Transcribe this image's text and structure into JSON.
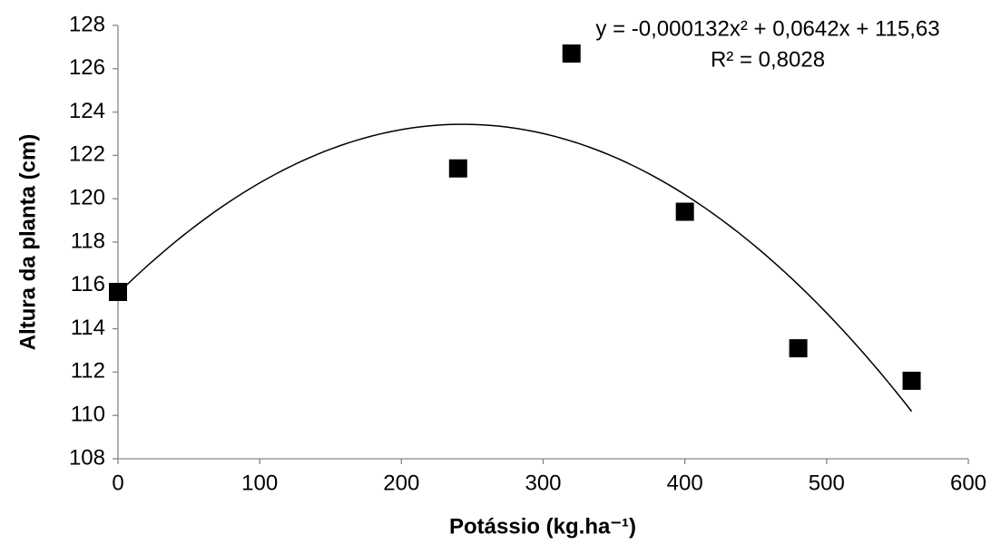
{
  "chart_data": {
    "type": "scatter",
    "x_label": "Potássio (kg.ha⁻¹)",
    "y_label": "Altura da planta (cm)",
    "series": [
      {
        "x": [
          0,
          240,
          320,
          400,
          480,
          560
        ],
        "values": [
          115.7,
          121.4,
          126.7,
          119.4,
          113.1,
          111.6
        ],
        "color": "#000000"
      }
    ],
    "trendline": {
      "equation": "y = -0,000132x² + 0,0642x + 115,63",
      "r_squared": "R² = 0,8028",
      "coefficients": [
        -0.000132,
        0.0642,
        115.63
      ],
      "color": "#000000"
    },
    "xlim": [
      0,
      600
    ],
    "xticks": [
      0,
      100,
      200,
      300,
      400,
      500,
      600
    ],
    "ylim": [
      108,
      128
    ],
    "yticks": [
      108,
      110,
      112,
      114,
      116,
      118,
      120,
      122,
      124,
      126,
      128
    ],
    "grid": false
  }
}
